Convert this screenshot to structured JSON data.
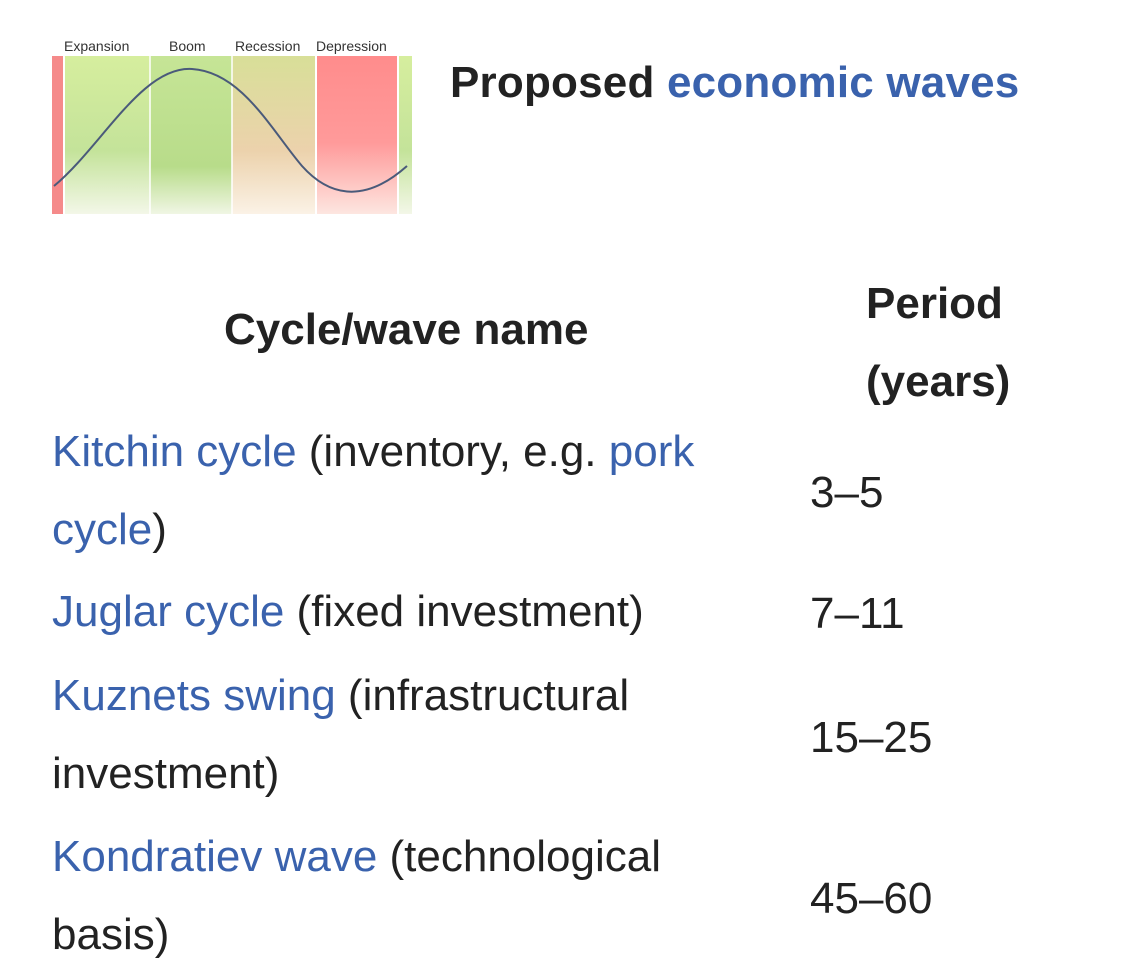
{
  "figure": {
    "phases": [
      "Expansion",
      "Boom",
      "Recession",
      "Depression"
    ],
    "colors": {
      "green": "#c9e89a",
      "tan": "#e9cfa6",
      "red": "#ff9090",
      "curve": "#4a5a7a"
    }
  },
  "title": {
    "prefix": "Proposed ",
    "link": "economic waves"
  },
  "table": {
    "headers": {
      "name": "Cycle/wave name",
      "period_line1": "Period",
      "period_line2": "(years)"
    },
    "rows": [
      {
        "link_a": "Kitchin cycle",
        "text_a": " (inventory, e.g. ",
        "link_b": "pork cycle",
        "text_b": ")",
        "period": "3–5"
      },
      {
        "link_a": "Juglar cycle",
        "text_a": " (fixed investment)",
        "period": "7–11"
      },
      {
        "link_a": "Kuznets swing",
        "text_a": " (infrastructural investment)",
        "period": "15–25"
      },
      {
        "link_a": "Kondratiev wave",
        "text_a": " (technological basis)",
        "period": "45–60"
      }
    ]
  },
  "colors": {
    "link": "#3a62ad",
    "text": "#222222"
  }
}
